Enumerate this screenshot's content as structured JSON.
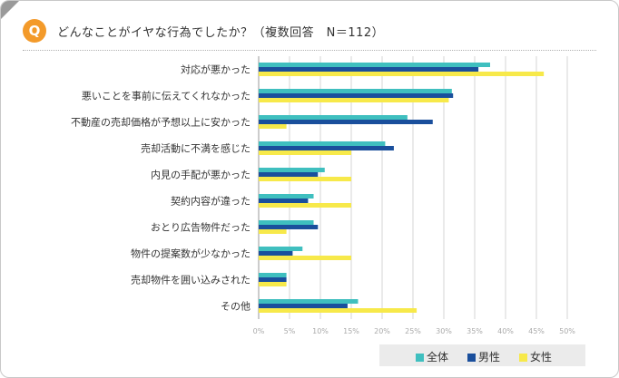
{
  "badge": "Q",
  "question": "どんなことがイヤな行為でしたか？（複数回答　N＝112）",
  "colors": {
    "all": "#3fbfbf",
    "male": "#1a4f9c",
    "female": "#f7e94a",
    "grid": "#d6d6d6",
    "badge": "#f39a2a"
  },
  "legend": [
    {
      "key": "all",
      "label": "全体"
    },
    {
      "key": "male",
      "label": "男性"
    },
    {
      "key": "female",
      "label": "女性"
    }
  ],
  "chart_data": {
    "type": "bar",
    "orientation": "horizontal",
    "categories": [
      "対応が悪かった",
      "悪いことを事前に伝えてくれなかった",
      "不動産の売却価格が予想以上に安かった",
      "売却活動に不満を感じた",
      "内見の手配が悪かった",
      "契約内容が違った",
      "おとり広告物件だった",
      "物件の提案数が少なかった",
      "売却物件を囲い込みされた",
      "その他"
    ],
    "series": [
      {
        "name": "全体",
        "key": "all",
        "values": [
          37.5,
          31.3,
          24.1,
          20.5,
          10.7,
          8.9,
          8.9,
          7.1,
          4.5,
          16.1
        ]
      },
      {
        "name": "男性",
        "key": "male",
        "values": [
          35.6,
          31.5,
          28.2,
          21.9,
          9.6,
          8.0,
          9.6,
          5.5,
          4.5,
          14.4
        ]
      },
      {
        "name": "女性",
        "key": "female",
        "values": [
          46.2,
          30.8,
          4.5,
          15.0,
          15.0,
          15.0,
          4.5,
          15.0,
          4.5,
          25.6
        ]
      }
    ],
    "xlim": [
      0,
      50
    ],
    "xticks": [
      "0%",
      "5%",
      "10%",
      "15%",
      "20%",
      "25%",
      "30%",
      "35%",
      "40%",
      "45%",
      "50%"
    ],
    "grid": true,
    "legend_position": "bottom-right"
  }
}
